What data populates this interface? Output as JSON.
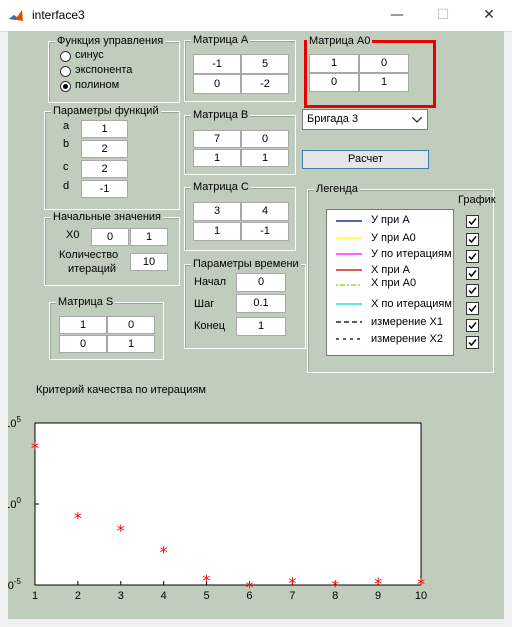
{
  "window": {
    "title": "interface3",
    "minimize": "—",
    "maximize": "☐",
    "close": "✕"
  },
  "control_function": {
    "title": "Функция управления",
    "options": [
      "синус",
      "экспонента",
      "полином"
    ],
    "selected": 2
  },
  "params": {
    "title": "Параметры функций",
    "labels": [
      "a",
      "b",
      "c",
      "d"
    ],
    "values": [
      "1",
      "2",
      "2",
      "-1"
    ]
  },
  "initial": {
    "title": "Начальные значения",
    "x0_label": "X0",
    "x0": [
      "0",
      "1"
    ],
    "iter_label_1": "Количество",
    "iter_label_2": "итераций",
    "iterations": "10"
  },
  "matrix_s": {
    "title": "Матрица S",
    "values": [
      "1",
      "0",
      "0",
      "1"
    ]
  },
  "matrix_a": {
    "title": "Матрица A",
    "values": [
      "-1",
      "5",
      "0",
      "-2"
    ]
  },
  "matrix_b": {
    "title": "Матрица B",
    "values": [
      "7",
      "0",
      "1",
      "1"
    ]
  },
  "matrix_c": {
    "title": "Матрица C",
    "values": [
      "3",
      "4",
      "1",
      "-1"
    ]
  },
  "matrix_a0": {
    "title": "Матрица A0",
    "values": [
      "1",
      "0",
      "0",
      "1"
    ]
  },
  "time": {
    "title": "Параметры времени",
    "labels": [
      "Начал",
      "Шаг",
      "Конец"
    ],
    "values": [
      "0",
      "0.1",
      "1"
    ]
  },
  "brigade": {
    "selected": "Бригада 3"
  },
  "calc_button": "Расчет",
  "legend": {
    "title": "Легенда",
    "graph_label": "График",
    "items": [
      {
        "label": "У при А",
        "color": "#00007f",
        "style": "solid"
      },
      {
        "label": "У при А0",
        "color": "#ffff00",
        "style": "solid"
      },
      {
        "label": "У по итерациям",
        "color": "#ff00ff",
        "style": "solid"
      },
      {
        "label": "Х при А",
        "color": "#c00000",
        "style": "solid"
      },
      {
        "label": "Х при А0",
        "color": "#7fd000",
        "style": "dotdash"
      },
      {
        "label": "Х по итерациям",
        "color": "#00d0d0",
        "style": "solid"
      },
      {
        "label": "измерение Х1",
        "color": "#000000",
        "style": "dashed"
      },
      {
        "label": "измерение Х2",
        "color": "#000000",
        "style": "dotted"
      }
    ],
    "checked": [
      true,
      true,
      true,
      true,
      true,
      true,
      true,
      true
    ]
  },
  "chart_title": "Критерий качества по итерациям",
  "chart_data": {
    "type": "scatter",
    "x": [
      1,
      2,
      3,
      4,
      5,
      6,
      7,
      8,
      9,
      10
    ],
    "y": [
      3000,
      0.15,
      0.025,
      0.0012,
      2e-05,
      8.3e-06,
      1.4e-05,
      9.5e-06,
      1.3e-05,
      1.2e-05
    ],
    "xlim": [
      1,
      10
    ],
    "ylim": [
      1e-05,
      100000
    ],
    "yscale": "log",
    "xticks": [
      "1",
      "2",
      "3",
      "4",
      "5",
      "6",
      "7",
      "8",
      "9",
      "10"
    ],
    "marker": "*",
    "color": "#ff0000",
    "title": "Критерий качества по итерациям"
  }
}
